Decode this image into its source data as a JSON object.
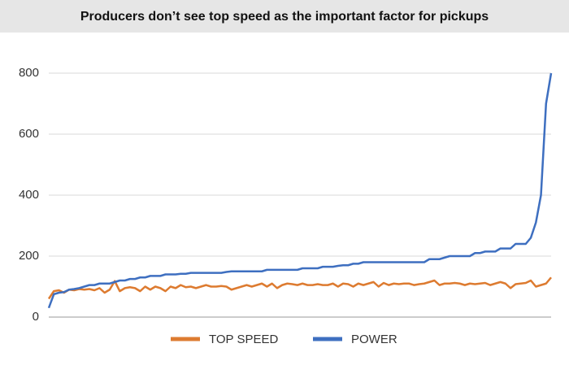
{
  "chart_data": {
    "type": "line",
    "title": "Producers don’t see top speed as the important factor for pickups",
    "ylim": [
      0,
      800
    ],
    "yticks": [
      0,
      200,
      400,
      600,
      800
    ],
    "grid": true,
    "legend": "bottom",
    "series": [
      {
        "name": "TOP SPEED",
        "color": "#dd7b30",
        "values": [
          60,
          85,
          88,
          80,
          90,
          88,
          92,
          90,
          92,
          88,
          95,
          80,
          90,
          118,
          85,
          95,
          98,
          95,
          85,
          100,
          90,
          100,
          95,
          85,
          100,
          95,
          105,
          98,
          100,
          95,
          100,
          105,
          100,
          100,
          102,
          100,
          90,
          95,
          100,
          105,
          100,
          105,
          110,
          100,
          110,
          95,
          105,
          110,
          108,
          105,
          110,
          105,
          105,
          108,
          105,
          105,
          110,
          100,
          110,
          108,
          100,
          110,
          105,
          110,
          115,
          100,
          112,
          105,
          110,
          108,
          110,
          110,
          105,
          108,
          110,
          115,
          120,
          105,
          110,
          110,
          112,
          110,
          105,
          110,
          108,
          110,
          112,
          105,
          110,
          115,
          110,
          95,
          108,
          110,
          112,
          120,
          100,
          105,
          110,
          130
        ]
      },
      {
        "name": "POWER",
        "color": "#3e6fc0",
        "values": [
          30,
          75,
          80,
          82,
          90,
          92,
          95,
          100,
          105,
          105,
          110,
          110,
          110,
          115,
          120,
          120,
          125,
          125,
          130,
          130,
          135,
          135,
          135,
          140,
          140,
          140,
          142,
          142,
          145,
          145,
          145,
          145,
          145,
          145,
          145,
          148,
          150,
          150,
          150,
          150,
          150,
          150,
          150,
          155,
          155,
          155,
          155,
          155,
          155,
          155,
          160,
          160,
          160,
          160,
          165,
          165,
          165,
          168,
          170,
          170,
          175,
          175,
          180,
          180,
          180,
          180,
          180,
          180,
          180,
          180,
          180,
          180,
          180,
          180,
          180,
          190,
          190,
          190,
          195,
          200,
          200,
          200,
          200,
          200,
          210,
          210,
          215,
          215,
          215,
          225,
          225,
          225,
          240,
          240,
          240,
          260,
          310,
          400,
          700,
          800
        ]
      }
    ]
  }
}
